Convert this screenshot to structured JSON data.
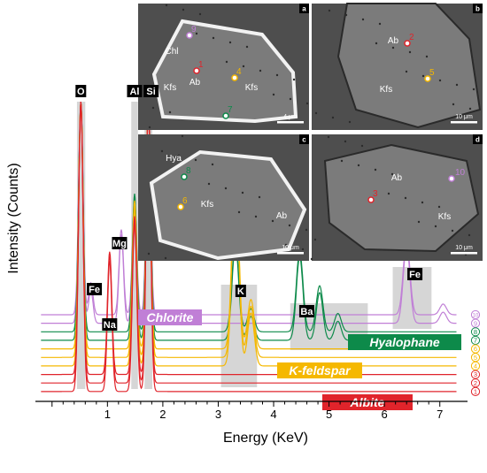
{
  "chart_data": {
    "type": "line",
    "xlabel": "Energy (KeV)",
    "ylabel": "Intensity (Counts)",
    "xlim": [
      -0.3,
      7.5
    ],
    "x_ticks": [
      "1",
      "2",
      "3",
      "4",
      "5",
      "6",
      "7"
    ],
    "colors": {
      "albite": "#e0242b",
      "kfeldspar": "#f5b800",
      "hyalophane": "#0d8a4a",
      "chlorite": "#c07fd6",
      "band": "#d6d6d6"
    },
    "element_labels": [
      {
        "label": "O",
        "energy": 0.52
      },
      {
        "label": "Fe",
        "energy": 0.7
      },
      {
        "label": "Na",
        "energy": 1.04
      },
      {
        "label": "Mg",
        "energy": 1.25
      },
      {
        "label": "Al",
        "energy": 1.49
      },
      {
        "label": "Si",
        "energy": 1.74
      },
      {
        "label": "K",
        "energy": 3.31
      },
      {
        "label": "Ba",
        "energy": 4.47
      },
      {
        "label": "Fe",
        "energy": 6.4
      }
    ],
    "bands": [
      {
        "label": "O",
        "from": 0.45,
        "to": 0.6
      },
      {
        "label": "Al",
        "from": 1.43,
        "to": 1.55
      },
      {
        "label": "Si",
        "from": 1.67,
        "to": 1.81
      },
      {
        "label": "K",
        "from": 3.05,
        "to": 3.7
      },
      {
        "label": "Ba",
        "from": 4.3,
        "to": 5.7
      },
      {
        "label": "Fe",
        "from": 6.15,
        "to": 6.85
      }
    ],
    "mineral_labels": [
      {
        "name": "Chlorite",
        "group": "chlorite"
      },
      {
        "name": "Hyalophane",
        "group": "hyalophane"
      },
      {
        "name": "K-feldspar",
        "group": "kfeldspar"
      },
      {
        "name": "Albite",
        "group": "albite"
      }
    ],
    "series": [
      {
        "name": "1",
        "group": "albite",
        "peaks": [
          [
            0.52,
            100
          ],
          [
            1.04,
            45
          ],
          [
            1.49,
            58
          ],
          [
            1.74,
            100
          ]
        ]
      },
      {
        "name": "2",
        "group": "albite",
        "peaks": [
          [
            0.52,
            100
          ],
          [
            1.04,
            45
          ],
          [
            1.49,
            58
          ],
          [
            1.74,
            100
          ]
        ]
      },
      {
        "name": "3",
        "group": "albite",
        "peaks": [
          [
            0.52,
            100
          ],
          [
            1.04,
            45
          ],
          [
            1.49,
            58
          ],
          [
            1.74,
            100
          ]
        ]
      },
      {
        "name": "4",
        "group": "kfeldspar",
        "peaks": [
          [
            0.52,
            100
          ],
          [
            1.49,
            60
          ],
          [
            1.74,
            100
          ],
          [
            3.31,
            75
          ],
          [
            3.59,
            20
          ]
        ]
      },
      {
        "name": "5",
        "group": "kfeldspar",
        "peaks": [
          [
            0.52,
            100
          ],
          [
            1.49,
            60
          ],
          [
            1.74,
            100
          ],
          [
            3.31,
            75
          ],
          [
            3.59,
            20
          ]
        ]
      },
      {
        "name": "6",
        "group": "kfeldspar",
        "peaks": [
          [
            0.52,
            100
          ],
          [
            1.49,
            60
          ],
          [
            1.74,
            100
          ],
          [
            3.31,
            75
          ],
          [
            3.59,
            20
          ]
        ]
      },
      {
        "name": "7",
        "group": "hyalophane",
        "peaks": [
          [
            0.52,
            100
          ],
          [
            1.49,
            60
          ],
          [
            1.74,
            100
          ],
          [
            3.31,
            40
          ],
          [
            3.59,
            10
          ],
          [
            4.47,
            35
          ],
          [
            4.83,
            20
          ],
          [
            5.16,
            8
          ]
        ]
      },
      {
        "name": "8",
        "group": "hyalophane",
        "peaks": [
          [
            0.52,
            100
          ],
          [
            1.49,
            60
          ],
          [
            1.74,
            100
          ],
          [
            3.31,
            40
          ],
          [
            3.59,
            10
          ],
          [
            4.47,
            35
          ],
          [
            4.83,
            20
          ],
          [
            5.16,
            8
          ]
        ]
      },
      {
        "name": "9",
        "group": "chlorite",
        "peaks": [
          [
            0.52,
            100
          ],
          [
            0.7,
            15
          ],
          [
            1.25,
            40
          ],
          [
            1.49,
            55
          ],
          [
            1.74,
            100
          ],
          [
            6.4,
            35
          ],
          [
            7.06,
            5
          ]
        ]
      },
      {
        "name": "10",
        "group": "chlorite",
        "peaks": [
          [
            0.52,
            100
          ],
          [
            0.7,
            15
          ],
          [
            1.25,
            40
          ],
          [
            1.49,
            55
          ],
          [
            1.74,
            100
          ],
          [
            6.4,
            35
          ],
          [
            7.06,
            5
          ]
        ]
      }
    ]
  },
  "micrographs": [
    {
      "panel": "a",
      "scale_bar": "4 μm",
      "minerals": [
        "Chl",
        "Ab",
        "Kfs",
        "Kfs"
      ],
      "points": [
        {
          "num": "9",
          "group": "chlorite"
        },
        {
          "num": "1",
          "group": "albite"
        },
        {
          "num": "4",
          "group": "kfeldspar"
        },
        {
          "num": "7",
          "group": "hyalophane"
        }
      ]
    },
    {
      "panel": "b",
      "scale_bar": "10 μm",
      "minerals": [
        "Ab",
        "Kfs"
      ],
      "points": [
        {
          "num": "2",
          "group": "albite"
        },
        {
          "num": "5",
          "group": "kfeldspar"
        }
      ]
    },
    {
      "panel": "c",
      "scale_bar": "10 μm",
      "minerals": [
        "Hya",
        "Kfs",
        "Ab"
      ],
      "points": [
        {
          "num": "8",
          "group": "hyalophane"
        },
        {
          "num": "6",
          "group": "kfeldspar"
        }
      ]
    },
    {
      "panel": "d",
      "scale_bar": "10 μm",
      "minerals": [
        "Ab",
        "Kfs"
      ],
      "points": [
        {
          "num": "3",
          "group": "albite"
        },
        {
          "num": "10",
          "group": "chlorite"
        }
      ]
    }
  ]
}
